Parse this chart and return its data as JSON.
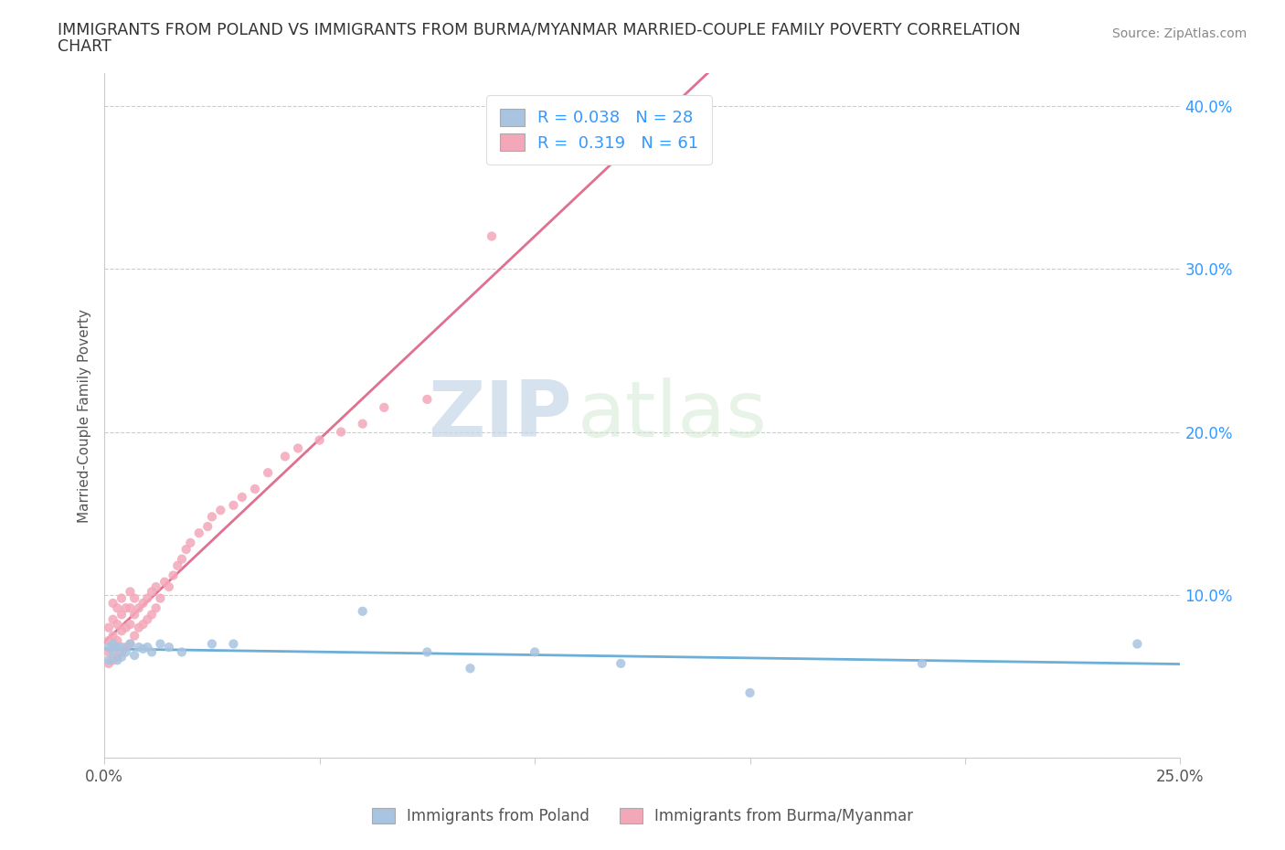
{
  "title_line1": "IMMIGRANTS FROM POLAND VS IMMIGRANTS FROM BURMA/MYANMAR MARRIED-COUPLE FAMILY POVERTY CORRELATION",
  "title_line2": "CHART",
  "source": "Source: ZipAtlas.com",
  "ylabel": "Married-Couple Family Poverty",
  "xlim": [
    0.0,
    0.25
  ],
  "ylim": [
    0.0,
    0.42
  ],
  "poland_R": 0.038,
  "poland_N": 28,
  "burma_R": 0.319,
  "burma_N": 61,
  "poland_color": "#a8c4e0",
  "burma_color": "#f4a7b9",
  "poland_line_color": "#6baed6",
  "burma_line_color": "#e07090",
  "legend_label_poland": "Immigrants from Poland",
  "legend_label_burma": "Immigrants from Burma/Myanmar",
  "watermark_zip": "ZIP",
  "watermark_atlas": "atlas",
  "poland_x": [
    0.001,
    0.001,
    0.002,
    0.002,
    0.003,
    0.003,
    0.004,
    0.004,
    0.005,
    0.006,
    0.007,
    0.008,
    0.009,
    0.01,
    0.011,
    0.013,
    0.015,
    0.018,
    0.025,
    0.03,
    0.06,
    0.075,
    0.085,
    0.1,
    0.12,
    0.15,
    0.19,
    0.24
  ],
  "poland_y": [
    0.06,
    0.068,
    0.065,
    0.07,
    0.06,
    0.068,
    0.062,
    0.068,
    0.065,
    0.07,
    0.063,
    0.068,
    0.067,
    0.068,
    0.065,
    0.07,
    0.068,
    0.065,
    0.07,
    0.07,
    0.09,
    0.065,
    0.055,
    0.065,
    0.058,
    0.04,
    0.058,
    0.07
  ],
  "burma_x": [
    0.001,
    0.001,
    0.001,
    0.001,
    0.002,
    0.002,
    0.002,
    0.002,
    0.002,
    0.003,
    0.003,
    0.003,
    0.003,
    0.004,
    0.004,
    0.004,
    0.004,
    0.005,
    0.005,
    0.005,
    0.006,
    0.006,
    0.006,
    0.006,
    0.007,
    0.007,
    0.007,
    0.008,
    0.008,
    0.009,
    0.009,
    0.01,
    0.01,
    0.011,
    0.011,
    0.012,
    0.012,
    0.013,
    0.014,
    0.015,
    0.016,
    0.017,
    0.018,
    0.019,
    0.02,
    0.022,
    0.024,
    0.025,
    0.027,
    0.03,
    0.032,
    0.035,
    0.038,
    0.042,
    0.045,
    0.05,
    0.055,
    0.06,
    0.065,
    0.075,
    0.09
  ],
  "burma_y": [
    0.058,
    0.065,
    0.072,
    0.08,
    0.06,
    0.068,
    0.075,
    0.085,
    0.095,
    0.062,
    0.072,
    0.082,
    0.092,
    0.065,
    0.078,
    0.088,
    0.098,
    0.068,
    0.08,
    0.092,
    0.07,
    0.082,
    0.092,
    0.102,
    0.075,
    0.088,
    0.098,
    0.08,
    0.092,
    0.082,
    0.095,
    0.085,
    0.098,
    0.088,
    0.102,
    0.092,
    0.105,
    0.098,
    0.108,
    0.105,
    0.112,
    0.118,
    0.122,
    0.128,
    0.132,
    0.138,
    0.142,
    0.148,
    0.152,
    0.155,
    0.16,
    0.165,
    0.175,
    0.185,
    0.19,
    0.195,
    0.2,
    0.205,
    0.215,
    0.22,
    0.32
  ]
}
